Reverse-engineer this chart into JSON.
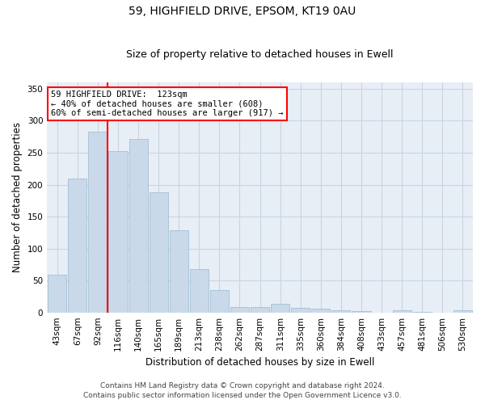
{
  "title1": "59, HIGHFIELD DRIVE, EPSOM, KT19 0AU",
  "title2": "Size of property relative to detached houses in Ewell",
  "xlabel": "Distribution of detached houses by size in Ewell",
  "ylabel": "Number of detached properties",
  "categories": [
    "43sqm",
    "67sqm",
    "92sqm",
    "116sqm",
    "140sqm",
    "165sqm",
    "189sqm",
    "213sqm",
    "238sqm",
    "262sqm",
    "287sqm",
    "311sqm",
    "335sqm",
    "360sqm",
    "384sqm",
    "408sqm",
    "433sqm",
    "457sqm",
    "481sqm",
    "506sqm",
    "530sqm"
  ],
  "values": [
    59,
    210,
    283,
    252,
    271,
    188,
    128,
    68,
    35,
    9,
    9,
    13,
    7,
    6,
    4,
    2,
    0,
    3,
    1,
    0,
    4
  ],
  "bar_color": "#c9d9ea",
  "bar_edge_color": "#9ab8d0",
  "grid_color": "#c8d4e4",
  "bg_color": "#e8eef6",
  "vline_color": "red",
  "vline_x": 2.5,
  "annotation_lines": [
    "59 HIGHFIELD DRIVE:  123sqm",
    "← 40% of detached houses are smaller (608)",
    "60% of semi-detached houses are larger (917) →"
  ],
  "annotation_box_color": "white",
  "annotation_box_edge_color": "red",
  "footer1": "Contains HM Land Registry data © Crown copyright and database right 2024.",
  "footer2": "Contains public sector information licensed under the Open Government Licence v3.0.",
  "ylim": [
    0,
    360
  ],
  "yticks": [
    0,
    50,
    100,
    150,
    200,
    250,
    300,
    350
  ],
  "title1_fontsize": 10,
  "title2_fontsize": 9,
  "ylabel_fontsize": 8.5,
  "xlabel_fontsize": 8.5,
  "tick_fontsize": 7.5,
  "footer_fontsize": 6.5
}
